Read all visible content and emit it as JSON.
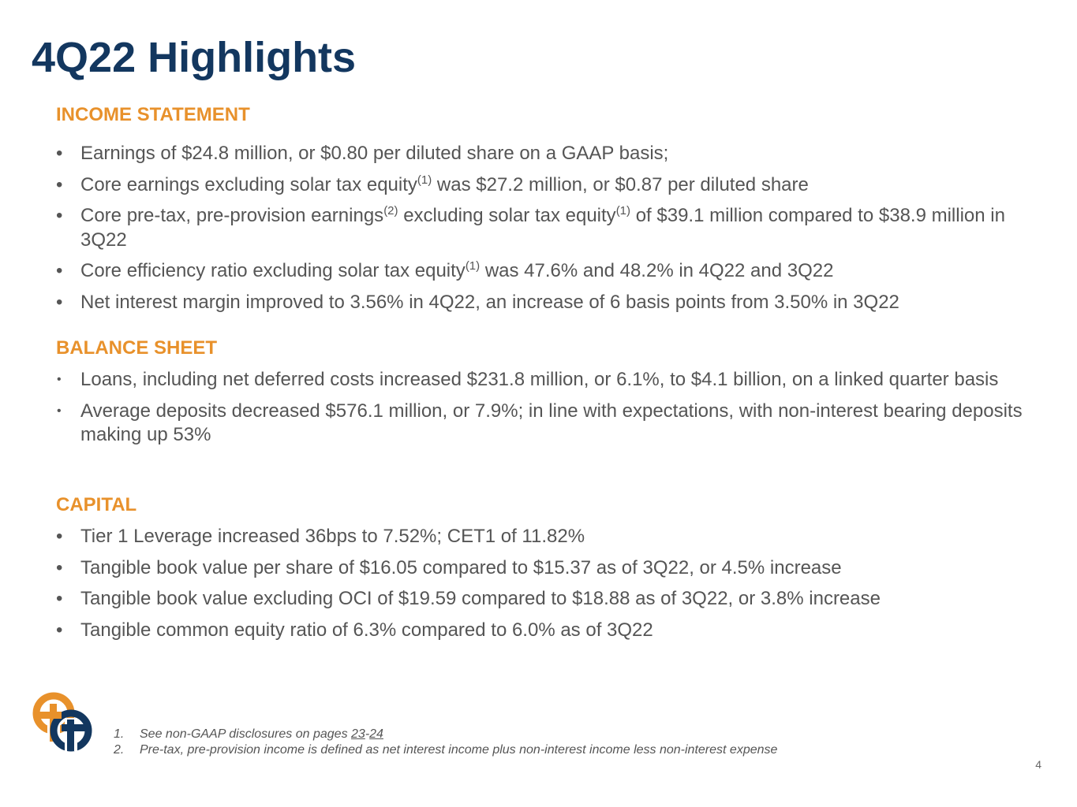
{
  "title": "4Q22 Highlights",
  "sections": {
    "income": {
      "heading": "INCOME STATEMENT",
      "bullets": [
        {
          "text": "Earnings of $24.8 million, or $0.80 per diluted share on a GAAP basis;"
        },
        {
          "a": "Core earnings excluding solar tax equity",
          "sup": "(1)",
          "b": " was $27.2 million, or $0.87 per diluted share"
        },
        {
          "a": "Core pre-tax, pre-provision earnings",
          "sup1": "(2)",
          "b": " excluding solar tax equity",
          "sup2": "(1)",
          "c": " of $39.1 million compared to $38.9 million in 3Q22"
        },
        {
          "a": "Core efficiency ratio excluding solar tax equity",
          "sup": "(1)",
          "b": " was 47.6% and 48.2% in 4Q22 and 3Q22"
        },
        {
          "text": "Net interest margin improved to 3.56% in 4Q22, an increase of 6 basis points from 3.50% in 3Q22"
        }
      ]
    },
    "balance": {
      "heading": "BALANCE SHEET",
      "bullets": [
        "Loans, including net deferred costs increased $231.8 million, or 6.1%, to $4.1 billion, on a linked quarter basis",
        "Average deposits decreased $576.1 million, or 7.9%; in line with expectations, with non-interest bearing deposits making up 53%"
      ]
    },
    "capital": {
      "heading": "CAPITAL",
      "bullets": [
        "Tier 1 Leverage increased 36bps to 7.52%; CET1 of 11.82%",
        "Tangible book value per share of $16.05 compared to $15.37 as of 3Q22, or 4.5% increase",
        "Tangible book value excluding OCI of $19.59 compared to $18.88 as of 3Q22, or 3.8% increase",
        "Tangible common equity ratio of 6.3% compared to 6.0% as of 3Q22"
      ]
    }
  },
  "footnotes": [
    {
      "num": "1.",
      "text": "See non-GAAP disclosures on pages ",
      "link1": "23",
      "sep": "-",
      "link2": "24"
    },
    {
      "num": "2.",
      "text": "Pre-tax, pre-provision income is defined as net interest income plus non-interest income less non-interest expense"
    }
  ],
  "page_number": "4",
  "colors": {
    "title": "#13375f",
    "heading": "#e8912b",
    "body": "#555555",
    "logo_orange": "#e8912b",
    "logo_navy": "#13375f"
  },
  "icons": {
    "logo": "company-logo"
  }
}
